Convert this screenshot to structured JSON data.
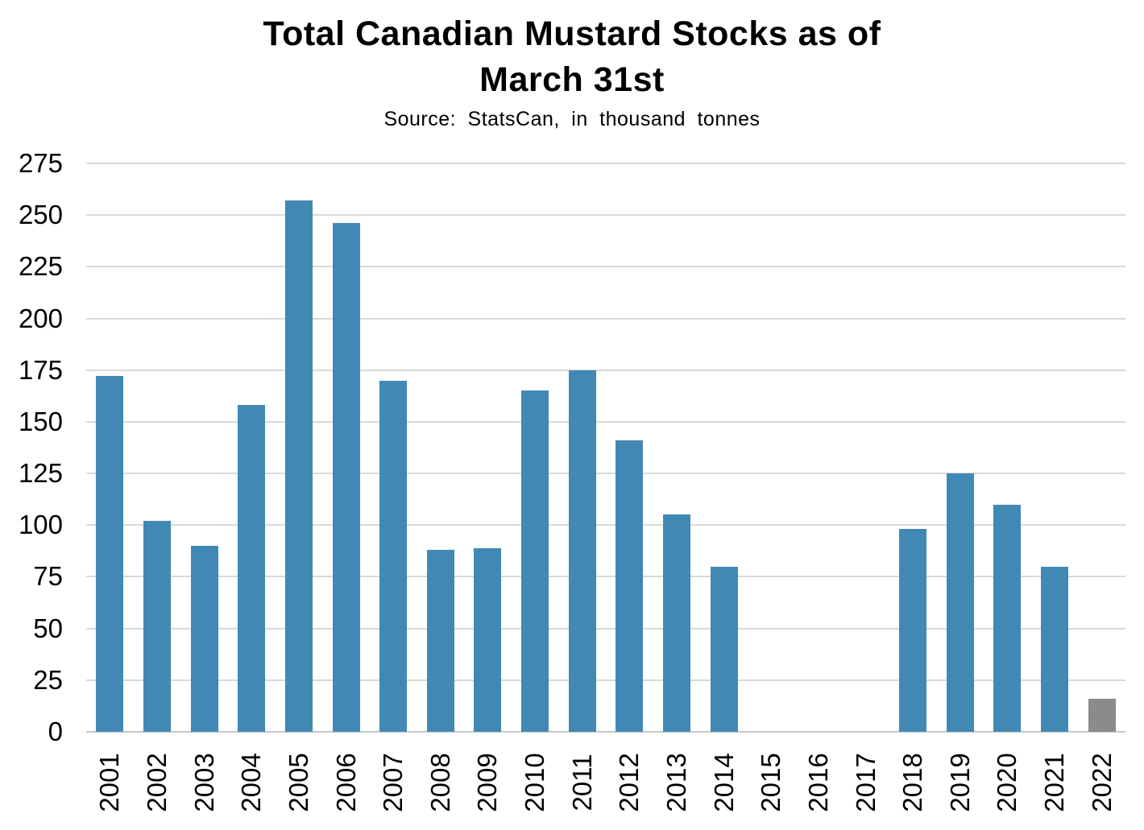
{
  "header": {
    "title_line1": "Total Canadian Mustard Stocks as of",
    "title_line2": "March 31st",
    "subtitle": "Source:  StatsCan,  in thousand  tonnes"
  },
  "chart_data": {
    "type": "bar",
    "title": "Total Canadian Mustard Stocks as of March 31st",
    "subtitle": "Source: StatsCan, in thousand tonnes",
    "categories": [
      "2001",
      "2002",
      "2003",
      "2004",
      "2005",
      "2006",
      "2007",
      "2008",
      "2009",
      "2010",
      "2011",
      "2012",
      "2013",
      "2014",
      "2015",
      "2016",
      "2017",
      "2018",
      "2019",
      "2020",
      "2021",
      "2022"
    ],
    "values": [
      172,
      102,
      90,
      158,
      257,
      246,
      170,
      88,
      89,
      165,
      175,
      141,
      105,
      80,
      0,
      0,
      0,
      98,
      125,
      110,
      80,
      16
    ],
    "xlabel": "",
    "ylabel": "",
    "ylim": [
      0,
      275
    ],
    "y_ticks": [
      0,
      25,
      50,
      75,
      100,
      125,
      150,
      175,
      200,
      225,
      250,
      275
    ],
    "grid": true,
    "legend": "none",
    "colors": {
      "bar": "#4189b4",
      "estimate_bar_dark": "#838383",
      "estimate_bar_light": "#929292",
      "gridline": "#d9d9d9"
    },
    "highlight_bars": [
      {
        "category": "2022",
        "style": "checker"
      }
    ]
  }
}
